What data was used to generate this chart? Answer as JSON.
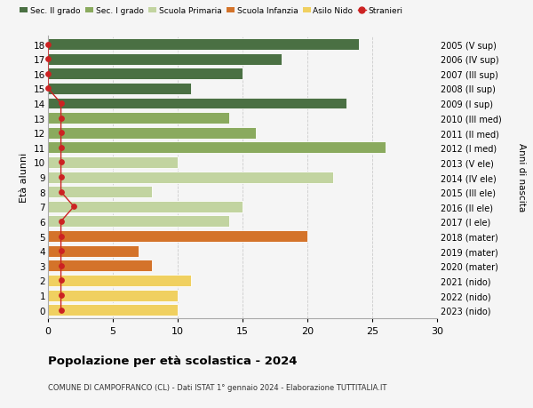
{
  "ages": [
    18,
    17,
    16,
    15,
    14,
    13,
    12,
    11,
    10,
    9,
    8,
    7,
    6,
    5,
    4,
    3,
    2,
    1,
    0
  ],
  "years": [
    "2005 (V sup)",
    "2006 (IV sup)",
    "2007 (III sup)",
    "2008 (II sup)",
    "2009 (I sup)",
    "2010 (III med)",
    "2011 (II med)",
    "2012 (I med)",
    "2013 (V ele)",
    "2014 (IV ele)",
    "2015 (III ele)",
    "2016 (II ele)",
    "2017 (I ele)",
    "2018 (mater)",
    "2019 (mater)",
    "2020 (mater)",
    "2021 (nido)",
    "2022 (nido)",
    "2023 (nido)"
  ],
  "values": [
    24,
    18,
    15,
    11,
    23,
    14,
    16,
    26,
    10,
    22,
    8,
    15,
    14,
    20,
    7,
    8,
    11,
    10,
    10
  ],
  "stranieri": [
    0,
    0,
    0,
    0,
    1,
    1,
    1,
    1,
    1,
    1,
    1,
    2,
    1,
    1,
    1,
    1,
    1,
    1,
    1
  ],
  "colors": {
    "sec2": "#4a7043",
    "sec1": "#8aaa5e",
    "primaria": "#c2d4a0",
    "infanzia": "#d4732a",
    "nido": "#f0d060",
    "stranieri": "#cc2222"
  },
  "bar_colors": [
    "#4a7043",
    "#4a7043",
    "#4a7043",
    "#4a7043",
    "#4a7043",
    "#8aaa5e",
    "#8aaa5e",
    "#8aaa5e",
    "#c2d4a0",
    "#c2d4a0",
    "#c2d4a0",
    "#c2d4a0",
    "#c2d4a0",
    "#d4732a",
    "#d4732a",
    "#d4732a",
    "#f0d060",
    "#f0d060",
    "#f0d060"
  ],
  "title": "Popolazione per età scolastica - 2024",
  "subtitle": "COMUNE DI CAMPOFRANCO (CL) - Dati ISTAT 1° gennaio 2024 - Elaborazione TUTTITALIA.IT",
  "ylabel": "Età alunni",
  "right_ylabel": "Anni di nascita",
  "xlim": [
    0,
    30
  ],
  "xticks": [
    0,
    5,
    10,
    15,
    20,
    25,
    30
  ],
  "legend_labels": [
    "Sec. II grado",
    "Sec. I grado",
    "Scuola Primaria",
    "Scuola Infanzia",
    "Asilo Nido",
    "Stranieri"
  ],
  "legend_colors": [
    "#4a7043",
    "#8aaa5e",
    "#c2d4a0",
    "#d4732a",
    "#f0d060",
    "#cc2222"
  ],
  "bg_color": "#f5f5f5",
  "grid_color": "#cccccc"
}
